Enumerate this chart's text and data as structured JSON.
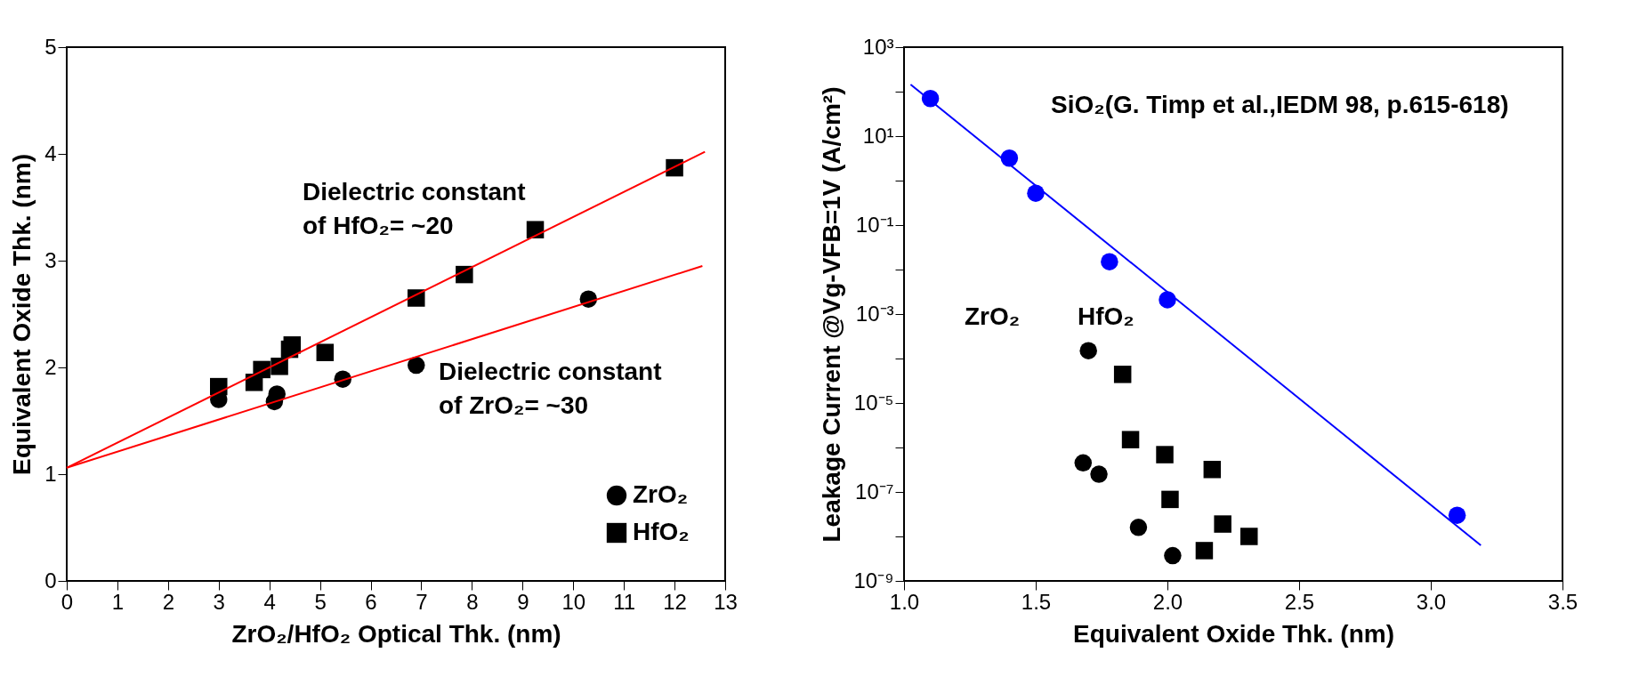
{
  "chart_data": [
    {
      "type": "scatter",
      "xlabel": "ZrO₂/HfO₂ Optical Thk. (nm)",
      "ylabel": "Equivalent Oxide Thk. (nm)",
      "xlim": [
        0,
        13
      ],
      "xticks": [
        0,
        1,
        2,
        3,
        4,
        5,
        6,
        7,
        8,
        9,
        10,
        11,
        12,
        13
      ],
      "ylim": [
        0,
        5
      ],
      "yticks": [
        0,
        1,
        2,
        3,
        4,
        5
      ],
      "grid": false,
      "legend": "bottom right",
      "series": [
        {
          "name": "ZrO₂",
          "type": "scatter",
          "marker": "circle",
          "color": "#000000",
          "x": [
            3.0,
            4.1,
            4.15,
            5.45,
            6.9,
            10.3
          ],
          "values": [
            1.7,
            1.68,
            1.75,
            1.89,
            2.02,
            2.64
          ]
        },
        {
          "name": "HfO₂",
          "type": "scatter",
          "marker": "square",
          "color": "#000000",
          "x": [
            3.0,
            3.7,
            3.85,
            4.2,
            4.4,
            4.45,
            5.1,
            6.9,
            7.85,
            9.25,
            12.0
          ],
          "values": [
            1.82,
            1.86,
            1.98,
            2.01,
            2.17,
            2.21,
            2.14,
            2.65,
            2.87,
            3.29,
            3.87
          ]
        },
        {
          "type": "line",
          "color": "#ff0000",
          "x": [
            0,
            12.6
          ],
          "values": [
            1.06,
            4.02
          ]
        },
        {
          "type": "line",
          "color": "#ff0000",
          "x": [
            0,
            12.55
          ],
          "values": [
            1.06,
            2.95
          ]
        }
      ],
      "annotations": [
        "Dielectric constant\nof HfO₂= ~20",
        "Dielectric constant\nof ZrO₂= ~30"
      ]
    },
    {
      "type": "scatter",
      "xlabel": "Equivalent Oxide Thk. (nm)",
      "ylabel": "Leakage Current @Vg-VFB=1V (A/cm²)",
      "xlim": [
        1.0,
        3.5
      ],
      "xticks": [
        {
          "value": 1.0,
          "label": "1.0"
        },
        1.5,
        {
          "value": 2.0,
          "label": "2.0"
        },
        2.5,
        {
          "value": 3.0,
          "label": "3.0"
        },
        3.5
      ],
      "ylim": [
        1e-09,
        1000
      ],
      "log": "y",
      "yticks": [
        {
          "value": 1e-09,
          "label": "10⁻⁹"
        },
        {
          "value": 1e-08,
          "label": null
        },
        {
          "value": 1e-07,
          "label": "10⁻⁷"
        },
        {
          "value": 1e-06,
          "label": null
        },
        {
          "value": 1e-05,
          "label": "10⁻⁵"
        },
        {
          "value": 0.0001,
          "label": null
        },
        {
          "value": 0.001,
          "label": "10⁻³"
        },
        {
          "value": 0.01,
          "label": null
        },
        {
          "value": 0.1,
          "label": "10⁻¹"
        },
        {
          "value": 1,
          "label": null
        },
        {
          "value": 10,
          "label": "10¹"
        },
        {
          "value": 100,
          "label": null
        },
        {
          "value": 1000,
          "label": "10³"
        }
      ],
      "grid": false,
      "series": [
        {
          "type": "scatter",
          "marker": "circle",
          "color": "#0000ff",
          "x": [
            1.1,
            1.4,
            1.5,
            1.78,
            2.0,
            3.1
          ],
          "values": [
            70,
            3.2,
            0.52,
            0.015,
            0.0021,
            3e-08
          ]
        },
        {
          "type": "line",
          "color": "#0000ff",
          "x": [
            1.025,
            3.19
          ],
          "values": [
            145,
            6.3e-09
          ]
        },
        {
          "type": "scatter",
          "marker": "circle",
          "color": "#000000",
          "x": [
            1.7,
            1.68,
            1.74,
            1.89,
            2.02
          ],
          "values": [
            0.00015,
            4.5e-07,
            2.5e-07,
            1.6e-08,
            3.7e-09
          ]
        },
        {
          "type": "scatter",
          "marker": "square",
          "color": "#000000",
          "x": [
            1.83,
            1.86,
            1.99,
            2.17,
            2.01,
            2.21,
            2.31,
            2.14
          ],
          "values": [
            4.4e-05,
            1.5e-06,
            6.9e-07,
            3.2e-07,
            6.8e-08,
            1.9e-08,
            1e-08,
            4.8e-09
          ]
        }
      ],
      "annotations": [
        "SiO₂(G. Timp et al.,IEDM 98, p.615-618)",
        "ZrO₂",
        "HfO₂"
      ]
    }
  ]
}
